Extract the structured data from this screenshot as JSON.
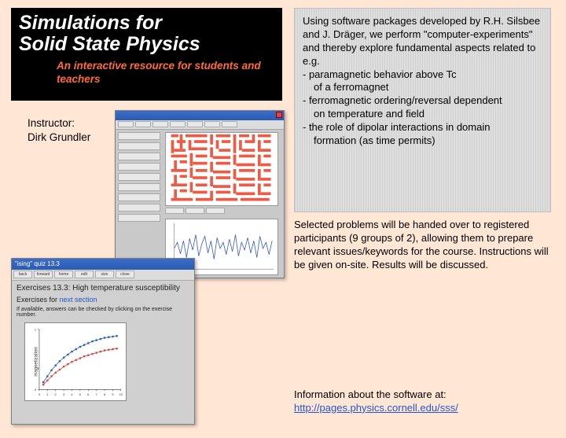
{
  "banner": {
    "title_l1": "Simulations for",
    "title_l2": "Solid State Physics",
    "subtitle": "An interactive resource for students and teachers",
    "bg": "#000000",
    "title_color": "#ffffff",
    "sub_color": "#ff6b36"
  },
  "instructor": {
    "label": "Instructor:",
    "name": "Dirk Grundler"
  },
  "info": {
    "intro": "Using software packages developed by R.H. Silsbee and J. Dräger, we perform \"computer-experiments\" and thereby explore fundamental aspects related to e.g.",
    "bullets": [
      {
        "l1": "- paramagnetic behavior above Tc",
        "l2": "of a ferromagnet"
      },
      {
        "l1": "- ferromagnetic ordering/reversal dependent",
        "l2": "on temperature and field"
      },
      {
        "l1": "- the role of dipolar interactions in domain",
        "l2": "formation (as time permits)"
      }
    ],
    "box_bg": "#d8d8d8"
  },
  "selected": {
    "text": "Selected problems will be handed over to registered participants (9 groups of 2), allowing them to prepare relevant issues/keywords for the course. Instructions will be given on-site. Results will be discussed."
  },
  "software": {
    "label": "Information about the software at:",
    "url": "http://pages.physics.cornell.edu/sss/"
  },
  "shot1": {
    "type": "computer-screenshot",
    "description": "simulation GUI with domain/maze view and time series plot",
    "titlebar_color": "#3b6eca",
    "maze_color": "#ef5a45",
    "maze_bg": "#ffffff",
    "plot_line_color": "#3355cc",
    "plot_bg": "#ffffff",
    "side_controls_count": 9,
    "toolbar_buttons": 7
  },
  "shot2": {
    "type": "computer-screenshot",
    "titlebar_text": "\"ising\" quiz 13.3",
    "toolbar_labels": [
      "back",
      "forward",
      "home",
      "edit",
      "size",
      "close"
    ],
    "heading": "Exercises 13.3: High temperature susceptibility",
    "line2_pre": "Exercises for ",
    "line2_link": "next section",
    "line3": "If available, answers can be checked by clicking on the exercise number.",
    "chart": {
      "type": "scatter-line",
      "ylabel": "magnetization",
      "xlim": [
        0,
        10
      ],
      "ylim": [
        0,
        1
      ],
      "xticks": [
        0,
        1,
        2,
        3,
        4,
        5,
        6,
        7,
        8,
        9,
        10
      ],
      "yticks": [
        0,
        1
      ],
      "series": [
        {
          "color": "#2b5bb0",
          "marker": "square",
          "x": [
            0.5,
            1,
            1.5,
            2,
            2.5,
            3,
            3.5,
            4,
            4.5,
            5,
            5.5,
            6,
            6.5,
            7,
            7.5,
            8,
            8.5,
            9,
            9.5
          ],
          "y": [
            0.12,
            0.22,
            0.32,
            0.4,
            0.47,
            0.53,
            0.58,
            0.63,
            0.67,
            0.71,
            0.74,
            0.77,
            0.8,
            0.82,
            0.84,
            0.86,
            0.87,
            0.88,
            0.89
          ]
        },
        {
          "color": "#d64545",
          "marker": "square",
          "x": [
            0.5,
            1,
            1.5,
            2,
            2.5,
            3,
            3.5,
            4,
            4.5,
            5,
            5.5,
            6,
            6.5,
            7,
            7.5,
            8,
            8.5,
            9,
            9.5
          ],
          "y": [
            0.08,
            0.15,
            0.22,
            0.28,
            0.33,
            0.38,
            0.42,
            0.46,
            0.49,
            0.52,
            0.55,
            0.57,
            0.59,
            0.61,
            0.63,
            0.65,
            0.66,
            0.67,
            0.68
          ]
        }
      ],
      "bg": "#ffffff",
      "axis_color": "#333333"
    }
  },
  "slide_bg": "#ffe6d5"
}
